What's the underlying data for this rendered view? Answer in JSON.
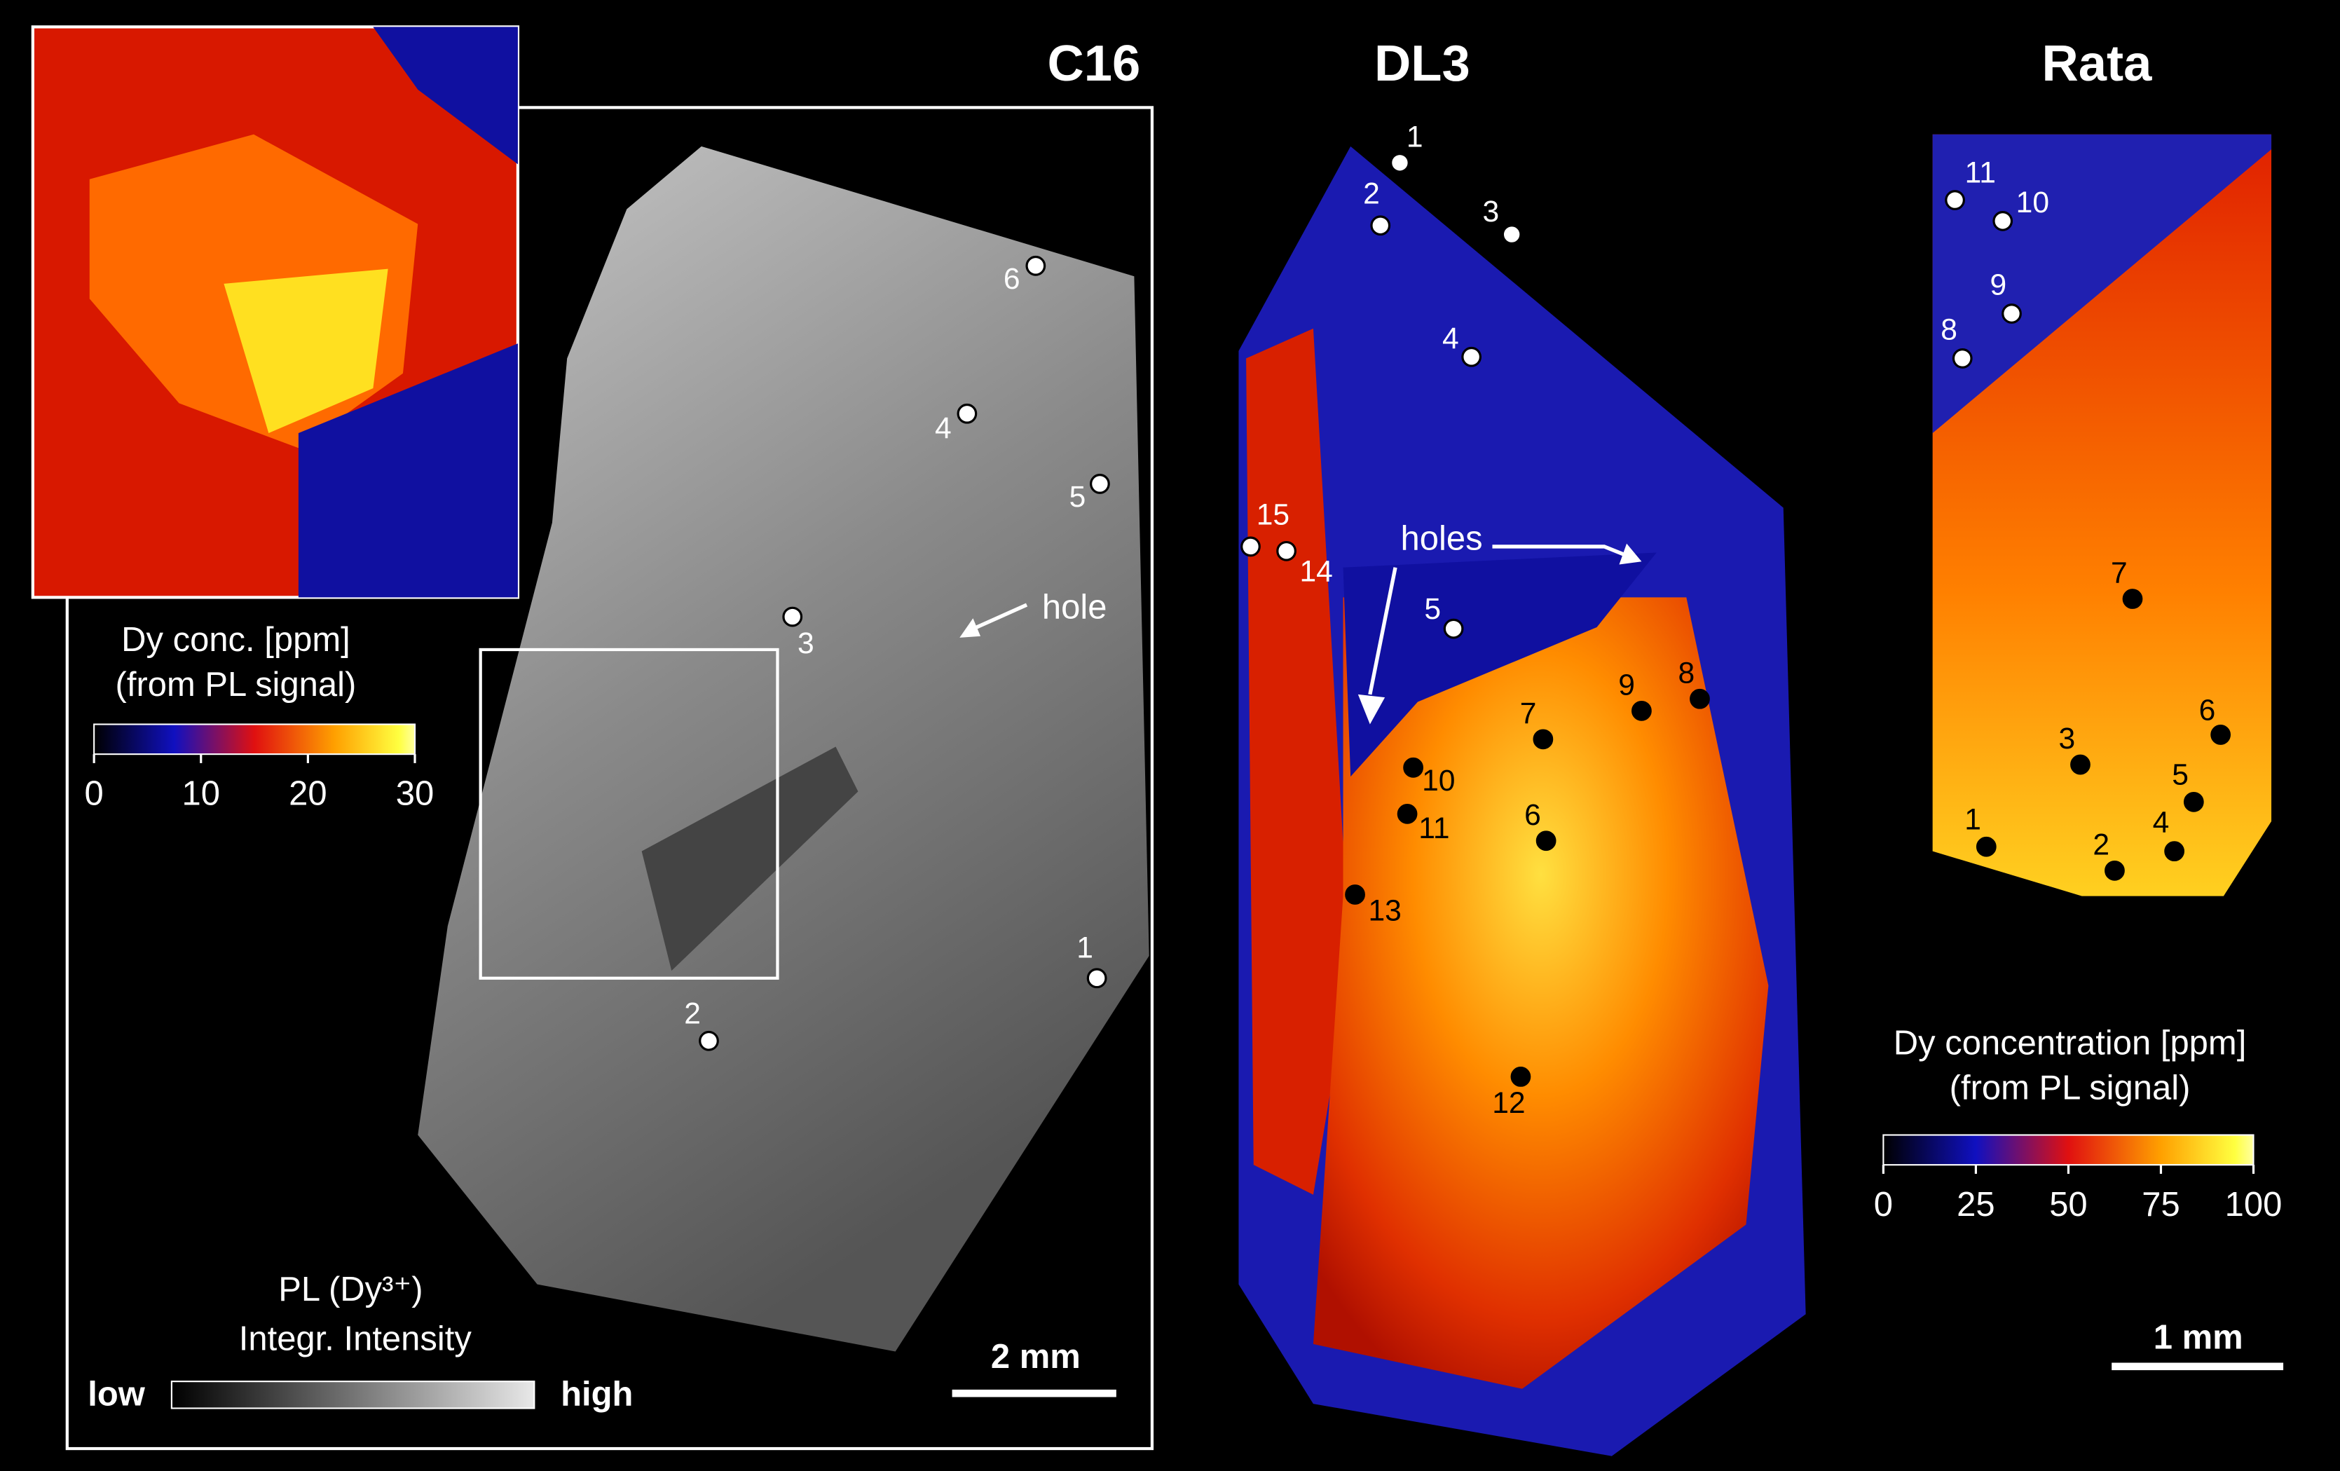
{
  "panels": [
    {
      "title": "C16",
      "annotation": "hole",
      "scale_bar": "2 mm",
      "spots": [
        "1",
        "2",
        "3",
        "4",
        "5",
        "6"
      ],
      "colorbar": {
        "title": [
          "Dy conc. [ppm]",
          "(from PL signal)"
        ],
        "lim": [
          0,
          30
        ],
        "ticks": [
          0,
          10,
          20,
          30
        ]
      },
      "intensity_legend": {
        "title": "PL (Dy³⁺)",
        "subtitle": "Integr. Intensity",
        "low": "low",
        "high": "high"
      }
    },
    {
      "title": "DL3",
      "annotation": "holes",
      "spots": [
        "1",
        "2",
        "3",
        "4",
        "5",
        "6",
        "7",
        "8",
        "9",
        "10",
        "11",
        "12",
        "13",
        "14",
        "15"
      ]
    },
    {
      "title": "Rata",
      "scale_bar": "1 mm",
      "spots": [
        "1",
        "2",
        "3",
        "4",
        "5",
        "6",
        "7",
        "8",
        "9",
        "10",
        "11"
      ],
      "colorbar": {
        "title": [
          "Dy concentration [ppm]",
          "(from PL signal)"
        ],
        "lim": [
          0,
          100
        ],
        "ticks": [
          0,
          25,
          50,
          75,
          100
        ]
      }
    }
  ]
}
